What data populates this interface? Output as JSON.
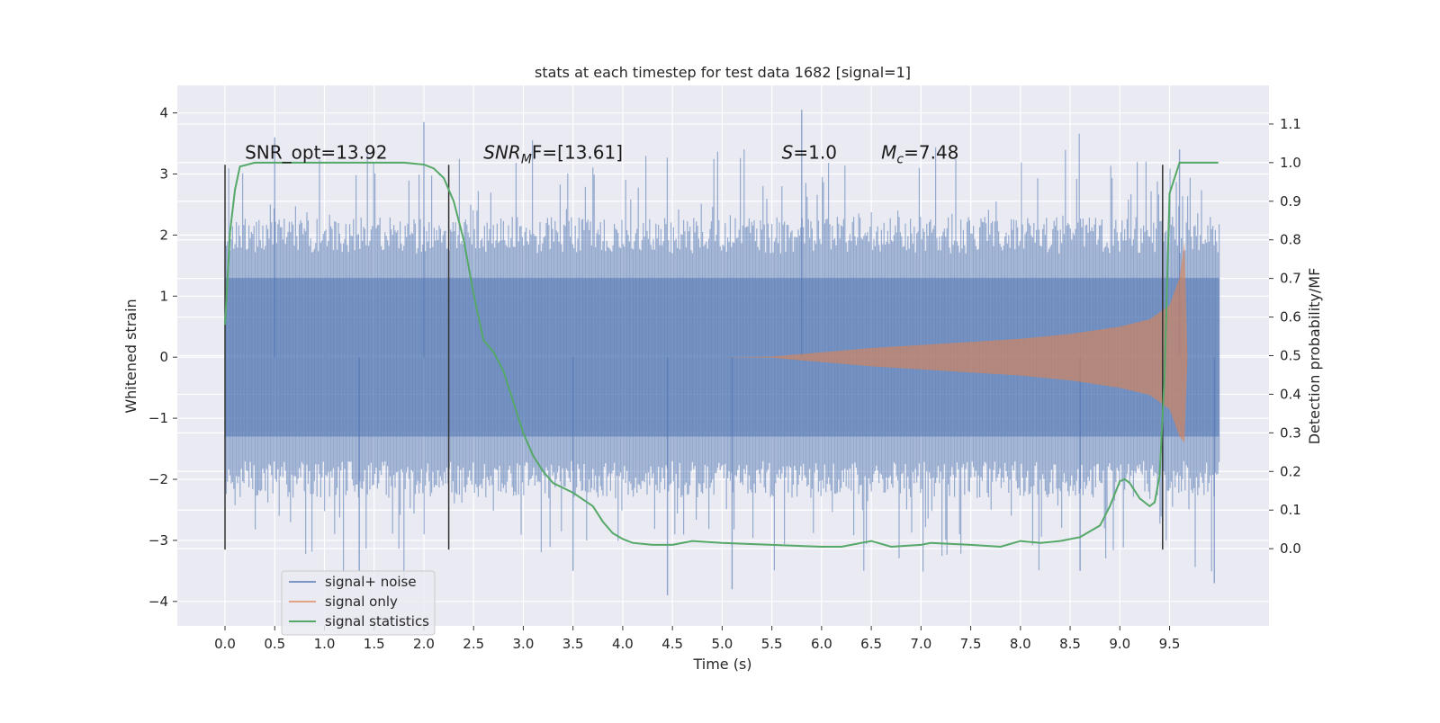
{
  "chart_data": {
    "type": "line",
    "title": "stats at each timestep for test data 1682 [signal=1]",
    "xlabel": "Time (s)",
    "ylabel": "Whitened strain",
    "ylabel_right": "Detection probability/MF",
    "xlim": [
      -0.48,
      10.5
    ],
    "ylim": [
      -4.4,
      4.45
    ],
    "ylim_right": [
      -0.2,
      1.2
    ],
    "xticks": [
      "0.0",
      "0.5",
      "1.0",
      "1.5",
      "2.0",
      "2.5",
      "3.0",
      "3.5",
      "4.0",
      "4.5",
      "5.0",
      "5.5",
      "6.0",
      "6.5",
      "7.0",
      "7.5",
      "8.0",
      "8.5",
      "9.0",
      "9.5"
    ],
    "yticks": [
      "4",
      "3",
      "2",
      "1",
      "0",
      "−1",
      "−2",
      "−3",
      "−4"
    ],
    "yticks_right": [
      "1.1",
      "1.0",
      "0.9",
      "0.8",
      "0.7",
      "0.6",
      "0.5",
      "0.4",
      "0.3",
      "0.2",
      "0.1",
      "0.0"
    ],
    "grid": true,
    "legend_position": "lower-left",
    "series": [
      {
        "name": "signal+ noise",
        "color": "#4c72b0",
        "axis": "left",
        "x_range": [
          0.0,
          10.0
        ],
        "band_core": 1.3,
        "band_typical": [
          -2.0,
          2.0
        ],
        "peaks_max": 4.05,
        "peaks_min": -4.0
      },
      {
        "name": "signal only",
        "color": "#dd8452",
        "axis": "left",
        "x": [
          5.0,
          5.5,
          6.0,
          6.5,
          7.0,
          7.5,
          8.0,
          8.5,
          9.0,
          9.3,
          9.5,
          9.6,
          9.65,
          9.68
        ],
        "upper": [
          0.0,
          0.01,
          0.08,
          0.15,
          0.2,
          0.25,
          0.3,
          0.38,
          0.5,
          0.62,
          0.85,
          1.3,
          1.9,
          0.0
        ],
        "lower": [
          0.0,
          -0.01,
          -0.08,
          -0.15,
          -0.2,
          -0.25,
          -0.3,
          -0.38,
          -0.5,
          -0.62,
          -0.85,
          -1.3,
          -1.4,
          0.0
        ]
      },
      {
        "name": "signal statistics",
        "color": "#55a868",
        "axis": "right",
        "x": [
          0.0,
          0.05,
          0.1,
          0.15,
          0.3,
          0.6,
          1.0,
          1.5,
          1.8,
          2.0,
          2.1,
          2.2,
          2.3,
          2.4,
          2.5,
          2.6,
          2.7,
          2.8,
          2.9,
          3.0,
          3.1,
          3.2,
          3.3,
          3.5,
          3.7,
          3.8,
          3.9,
          4.0,
          4.1,
          4.3,
          4.5,
          4.7,
          5.0,
          5.5,
          6.0,
          6.2,
          6.4,
          6.5,
          6.7,
          7.0,
          7.1,
          7.5,
          7.8,
          8.0,
          8.2,
          8.4,
          8.6,
          8.8,
          8.9,
          9.0,
          9.05,
          9.1,
          9.2,
          9.3,
          9.35,
          9.4,
          9.45,
          9.5,
          9.6,
          9.75,
          9.99
        ],
        "y": [
          0.58,
          0.82,
          0.93,
          0.99,
          1.0,
          1.0,
          1.0,
          1.0,
          1.0,
          0.995,
          0.985,
          0.96,
          0.9,
          0.8,
          0.66,
          0.54,
          0.51,
          0.46,
          0.38,
          0.3,
          0.24,
          0.2,
          0.17,
          0.145,
          0.11,
          0.07,
          0.04,
          0.025,
          0.015,
          0.01,
          0.01,
          0.02,
          0.015,
          0.01,
          0.005,
          0.005,
          0.015,
          0.02,
          0.005,
          0.01,
          0.015,
          0.01,
          0.005,
          0.02,
          0.015,
          0.02,
          0.03,
          0.06,
          0.11,
          0.175,
          0.18,
          0.17,
          0.13,
          0.11,
          0.12,
          0.19,
          0.45,
          0.92,
          1.0,
          1.0,
          1.0
        ]
      }
    ],
    "vertical_lines_x": [
      0.0,
      2.25,
      9.43
    ],
    "vertical_lines_range": [
      -3.15,
      3.15
    ],
    "vertical_lines_color": "#333333",
    "annotations": [
      {
        "type": "plain",
        "text": "SNR_opt=13.92",
        "x": 0.2,
        "y": 3.25
      },
      {
        "type": "sub",
        "base": "SNR",
        "sub": "M",
        "rest": "F=[13.61]",
        "x": 2.6,
        "y": 3.25
      },
      {
        "type": "italic",
        "base": "S",
        "rest": "=1.0",
        "x": 5.6,
        "y": 3.25
      },
      {
        "type": "sub",
        "base": "M",
        "sub": "c",
        "rest": "=7.48",
        "x": 6.6,
        "y": 3.25
      }
    ]
  }
}
